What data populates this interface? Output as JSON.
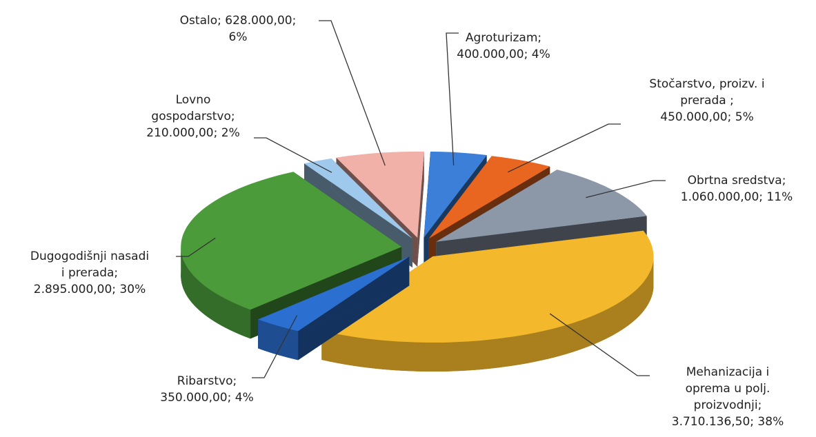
{
  "chart_data": {
    "type": "pie",
    "labels": [
      [
        "Agroturizam;",
        "400.000,00; 4%"
      ],
      [
        "Stočarstvo, proizv. i",
        "prerada ;",
        "450.000,00; 5%"
      ],
      [
        "Obrtna sredstva;",
        "1.060.000,00; 11%"
      ],
      [
        "Mehanizacija i",
        "oprema u polj.",
        "proizvodnji;",
        "3.710.136,50; 38%"
      ],
      [
        "Ribarstvo;",
        "350.000,00; 4%"
      ],
      [
        "Dugogodišnji nasadi",
        "i prerada;",
        "2.895.000,00; 30%"
      ],
      [
        "Lovno",
        "gospodarstvo;",
        "210.000,00; 2%"
      ],
      [
        "Ostalo; 628.000,00;",
        "6%"
      ]
    ],
    "values": [
      400000,
      450000,
      1060000,
      3710136.5,
      350000,
      2895000,
      210000,
      628000
    ],
    "colors": [
      "#3b7fd8",
      "#e8661f",
      "#8c97a8",
      "#f4b82c",
      "#2b6fd1",
      "#4b9b3b",
      "#9fc9ec",
      "#f1b1a9"
    ]
  }
}
